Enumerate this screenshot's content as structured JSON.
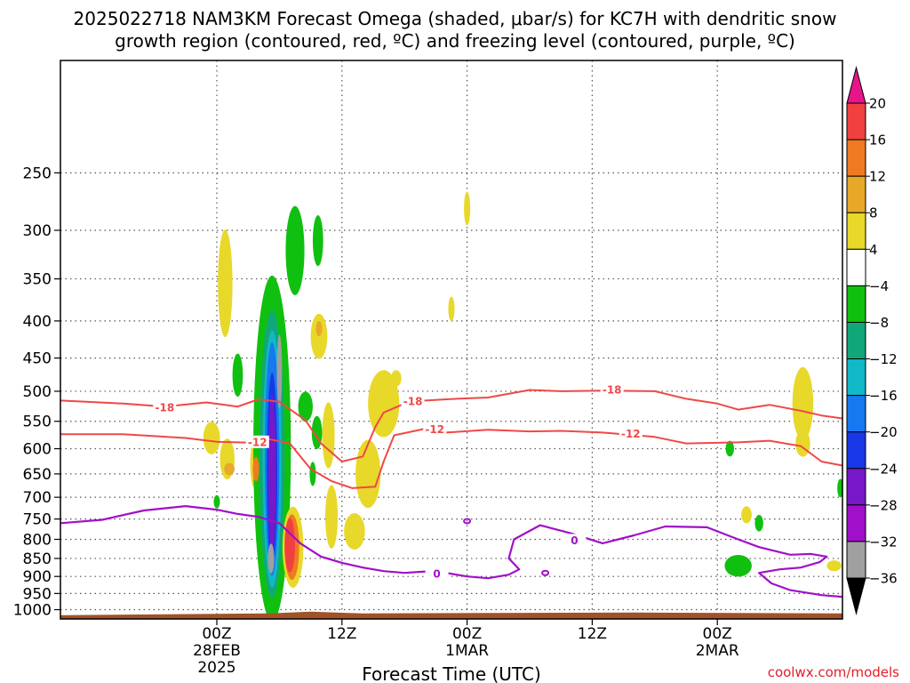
{
  "chart_data": {
    "type": "heatmap",
    "title_line1": "2025022718 NAM3KM Forecast Omega (shaded, μbar/s) for KC7H with dendritic snow",
    "title_line2": "growth region (contoured, red, ºC) and freezing level (contoured, purple, ºC)",
    "xlabel": "Forecast Time (UTC)",
    "credit": "coolwx.com/models",
    "x_axis": {
      "range_hours": [
        -15,
        60
      ],
      "ticks": [
        {
          "hour": 0,
          "label": "00Z",
          "sub1": "28FEB",
          "sub2": "2025"
        },
        {
          "hour": 12,
          "label": "12Z",
          "sub1": "",
          "sub2": ""
        },
        {
          "hour": 24,
          "label": "00Z",
          "sub1": "1MAR",
          "sub2": ""
        },
        {
          "hour": 36,
          "label": "12Z",
          "sub1": "",
          "sub2": ""
        },
        {
          "hour": 48,
          "label": "00Z",
          "sub1": "2MAR",
          "sub2": ""
        }
      ]
    },
    "y_axis": {
      "scale": "log-pressure",
      "range_hpa": [
        1030,
        175
      ],
      "ticks": [
        250,
        300,
        350,
        400,
        450,
        500,
        550,
        600,
        650,
        700,
        750,
        800,
        850,
        900,
        950,
        1000
      ]
    },
    "colorbar": {
      "levels": [
        20,
        16,
        12,
        8,
        4,
        -4,
        -8,
        -12,
        -16,
        -20,
        -24,
        -28,
        -32,
        -36
      ],
      "colors": [
        "#e8145e",
        "#f04040",
        "#f07a22",
        "#e8a828",
        "#e8d82a",
        "#ffffff",
        "#10c010",
        "#10a878",
        "#10b8c8",
        "#1878f0",
        "#1838e8",
        "#7818c8",
        "#a010c8",
        "#a0a0a0",
        "#000000"
      ],
      "top_triangle_color": "#e8148a",
      "bottom_triangle_color": "#000000"
    },
    "omega_regions": [
      {
        "hour": 0.8,
        "p": 355,
        "dh": 0.7,
        "dp": 120,
        "value": 6
      },
      {
        "hour": -0.5,
        "p": 580,
        "dh": 0.8,
        "dp": 60,
        "value": 6
      },
      {
        "hour": 1.0,
        "p": 620,
        "dh": 0.7,
        "dp": 80,
        "value": 6
      },
      {
        "hour": 1.2,
        "p": 640,
        "dh": 0.5,
        "dp": 25,
        "value": 10
      },
      {
        "hour": 3.7,
        "p": 630,
        "dh": 0.5,
        "dp": 100,
        "value": 6
      },
      {
        "hour": 3.75,
        "p": 640,
        "dh": 0.3,
        "dp": 50,
        "value": 12
      },
      {
        "hour": 0.0,
        "p": 710,
        "dh": 0.3,
        "dp": 30,
        "value": -6
      },
      {
        "hour": 2.0,
        "p": 475,
        "dh": 0.5,
        "dp": 65,
        "value": -6
      },
      {
        "hour": 5.3,
        "p": 600,
        "dh": 1.8,
        "dp": 600,
        "value": -6
      },
      {
        "hour": 5.3,
        "p": 610,
        "dh": 1.2,
        "dp": 520,
        "value": -10
      },
      {
        "hour": 5.3,
        "p": 620,
        "dh": 0.9,
        "dp": 480,
        "value": -14
      },
      {
        "hour": 5.3,
        "p": 620,
        "dh": 0.7,
        "dp": 440,
        "value": -18
      },
      {
        "hour": 5.3,
        "p": 640,
        "dh": 0.5,
        "dp": 380,
        "value": -22
      },
      {
        "hour": 5.3,
        "p": 650,
        "dh": 0.35,
        "dp": 320,
        "value": -26
      },
      {
        "hour": 5.2,
        "p": 850,
        "dh": 0.3,
        "dp": 80,
        "value": -34
      },
      {
        "hour": 6.0,
        "p": 470,
        "dh": 0.25,
        "dp": 110,
        "value": -34
      },
      {
        "hour": 5.0,
        "p": 440,
        "dh": 0.9,
        "dp": 90,
        "value": -6
      },
      {
        "hour": 7.5,
        "p": 320,
        "dh": 0.9,
        "dp": 90,
        "value": -6
      },
      {
        "hour": 9.7,
        "p": 310,
        "dh": 0.5,
        "dp": 50,
        "value": -6
      },
      {
        "hour": 8.5,
        "p": 525,
        "dh": 0.7,
        "dp": 50,
        "value": -6
      },
      {
        "hour": 9.6,
        "p": 570,
        "dh": 0.5,
        "dp": 60,
        "value": -6
      },
      {
        "hour": 9.2,
        "p": 650,
        "dh": 0.3,
        "dp": 50,
        "value": -6
      },
      {
        "hour": 7.3,
        "p": 820,
        "dh": 1.0,
        "dp": 210,
        "value": 6
      },
      {
        "hour": 7.2,
        "p": 820,
        "dh": 0.7,
        "dp": 170,
        "value": 12
      },
      {
        "hour": 7.0,
        "p": 815,
        "dh": 0.5,
        "dp": 140,
        "value": 18
      },
      {
        "hour": 9.8,
        "p": 420,
        "dh": 0.8,
        "dp": 60,
        "value": 6
      },
      {
        "hour": 9.8,
        "p": 410,
        "dh": 0.3,
        "dp": 20,
        "value": 10
      },
      {
        "hour": 10.7,
        "p": 575,
        "dh": 0.6,
        "dp": 120,
        "value": 6
      },
      {
        "hour": 11.0,
        "p": 745,
        "dh": 0.6,
        "dp": 150,
        "value": 6
      },
      {
        "hour": 16.0,
        "p": 520,
        "dh": 1.5,
        "dp": 110,
        "value": 6
      },
      {
        "hour": 14.5,
        "p": 650,
        "dh": 1.2,
        "dp": 140,
        "value": 6
      },
      {
        "hour": 13.2,
        "p": 780,
        "dh": 1.0,
        "dp": 90,
        "value": 6
      },
      {
        "hour": 17.2,
        "p": 480,
        "dh": 0.5,
        "dp": 25,
        "value": 6
      },
      {
        "hour": 24.0,
        "p": 280,
        "dh": 0.3,
        "dp": 30,
        "value": 6
      },
      {
        "hour": 22.5,
        "p": 385,
        "dh": 0.3,
        "dp": 30,
        "value": 6
      },
      {
        "hour": 50.0,
        "p": 870,
        "dh": 1.3,
        "dp": 60,
        "value": -6
      },
      {
        "hour": 52.0,
        "p": 760,
        "dh": 0.4,
        "dp": 40,
        "value": -6
      },
      {
        "hour": 59.8,
        "p": 680,
        "dh": 0.3,
        "dp": 40,
        "value": -6
      },
      {
        "hour": 49.2,
        "p": 600,
        "dh": 0.4,
        "dp": 30,
        "value": -6
      },
      {
        "hour": 50.8,
        "p": 740,
        "dh": 0.5,
        "dp": 40,
        "value": 6
      },
      {
        "hour": 56.2,
        "p": 520,
        "dh": 1.0,
        "dp": 120,
        "value": 6
      },
      {
        "hour": 56.2,
        "p": 590,
        "dh": 0.7,
        "dp": 50,
        "value": 6
      },
      {
        "hour": 59.2,
        "p": 870,
        "dh": 0.7,
        "dp": 30,
        "value": 6
      }
    ],
    "isotherm_minus18": {
      "label": "-18",
      "color": "#f04848",
      "points": [
        [
          -15,
          515
        ],
        [
          -9,
          520
        ],
        [
          -5,
          525
        ],
        [
          -1,
          518
        ],
        [
          2,
          525
        ],
        [
          4,
          513
        ],
        [
          6,
          517
        ],
        [
          8.5,
          548
        ],
        [
          10,
          590
        ],
        [
          12,
          625
        ],
        [
          14,
          615
        ],
        [
          15.2,
          560
        ],
        [
          16,
          535
        ],
        [
          18,
          520
        ],
        [
          20,
          515
        ],
        [
          23,
          512
        ],
        [
          26,
          510
        ],
        [
          30,
          498
        ],
        [
          33,
          500
        ],
        [
          37,
          499
        ],
        [
          42,
          500
        ],
        [
          45,
          512
        ],
        [
          48,
          520
        ],
        [
          50,
          530
        ],
        [
          53,
          522
        ],
        [
          56,
          532
        ],
        [
          58,
          540
        ],
        [
          60,
          545
        ]
      ],
      "label_points": [
        [
          -5,
          526
        ],
        [
          18.8,
          516
        ],
        [
          37.9,
          497
        ]
      ]
    },
    "isotherm_minus12": {
      "label": "-12",
      "color": "#f04848",
      "points": [
        [
          -15,
          573
        ],
        [
          -9,
          573
        ],
        [
          -3,
          580
        ],
        [
          0,
          587
        ],
        [
          4,
          589
        ],
        [
          5,
          582
        ],
        [
          7,
          590
        ],
        [
          9,
          640
        ],
        [
          11,
          665
        ],
        [
          13,
          680
        ],
        [
          15.2,
          677
        ],
        [
          16,
          625
        ],
        [
          17,
          575
        ],
        [
          20,
          563
        ],
        [
          22,
          570
        ],
        [
          26,
          565
        ],
        [
          30,
          568
        ],
        [
          33,
          567
        ],
        [
          37,
          570
        ],
        [
          42,
          578
        ],
        [
          45,
          590
        ],
        [
          50,
          588
        ],
        [
          53,
          585
        ],
        [
          56,
          595
        ],
        [
          58,
          625
        ],
        [
          60,
          633
        ]
      ],
      "label_points": [
        [
          3.9,
          587
        ],
        [
          20.9,
          564
        ],
        [
          39.7,
          572
        ]
      ]
    },
    "freezing_level": {
      "label": "0",
      "color": "#a010c8",
      "points": [
        [
          -15,
          760
        ],
        [
          -11,
          752
        ],
        [
          -7,
          730
        ],
        [
          -3,
          720
        ],
        [
          0,
          728
        ],
        [
          2,
          738
        ],
        [
          4,
          745
        ],
        [
          6,
          760
        ],
        [
          8,
          810
        ],
        [
          10,
          845
        ],
        [
          12,
          862
        ],
        [
          14,
          875
        ],
        [
          16,
          885
        ],
        [
          18,
          890
        ],
        [
          20,
          886
        ],
        [
          22,
          890
        ],
        [
          24,
          900
        ],
        [
          26,
          905
        ],
        [
          28,
          895
        ],
        [
          29,
          880
        ],
        [
          28,
          850
        ],
        [
          28.5,
          800
        ],
        [
          31,
          765
        ],
        [
          34,
          785
        ],
        [
          37,
          810
        ],
        [
          40,
          790
        ],
        [
          43,
          768
        ],
        [
          47,
          770
        ],
        [
          50,
          800
        ],
        [
          52,
          820
        ],
        [
          55,
          840
        ],
        [
          57,
          838
        ],
        [
          58.5,
          845
        ],
        [
          57.8,
          860
        ],
        [
          56,
          875
        ],
        [
          54,
          880
        ],
        [
          53,
          885
        ],
        [
          52,
          890
        ],
        [
          53.2,
          920
        ],
        [
          55,
          940
        ],
        [
          58,
          955
        ],
        [
          60,
          960
        ]
      ],
      "label_points": [
        [
          21.1,
          892
        ],
        [
          34.3,
          802
        ]
      ],
      "blobs": [
        [
          24.0,
          755
        ],
        [
          31.5,
          890
        ]
      ]
    },
    "ground": {
      "color": "#a05228",
      "top_hpa": 1012
    }
  }
}
